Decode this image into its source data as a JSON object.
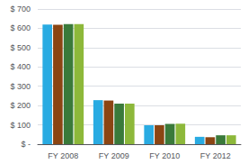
{
  "chart_data": {
    "type": "bar",
    "categories": [
      "FY 2008",
      "FY 2009",
      "FY 2010",
      "FY 2012"
    ],
    "series": [
      {
        "values": [
          620,
          228,
          98,
          38
        ],
        "color": "#29ABE2"
      },
      {
        "values": [
          618,
          226,
          98,
          36
        ],
        "color": "#8B4513"
      },
      {
        "values": [
          622,
          210,
          105,
          46
        ],
        "color": "#3A7A3A"
      },
      {
        "values": [
          622,
          210,
          106,
          46
        ],
        "color": "#8DB83A"
      }
    ],
    "ylim": [
      0,
      700
    ],
    "yticks": [
      {
        "value": 0,
        "label": "$ -"
      },
      {
        "value": 100,
        "label": "$ 100"
      },
      {
        "value": 200,
        "label": "$ 200"
      },
      {
        "value": 300,
        "label": "$ 300"
      },
      {
        "value": 400,
        "label": "$ 400"
      },
      {
        "value": 500,
        "label": "$ 500"
      },
      {
        "value": 600,
        "label": "$ 600"
      },
      {
        "value": 700,
        "label": "$ 700"
      }
    ],
    "grid": true
  }
}
